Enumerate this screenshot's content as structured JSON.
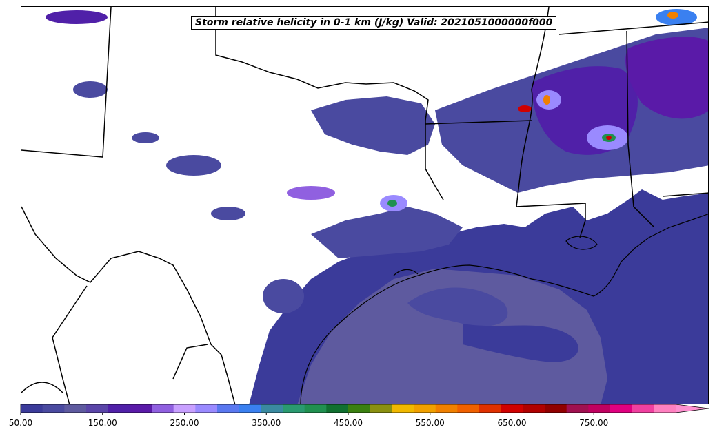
{
  "title": "Storm relative helicity in 0-1 km (J/kg) Valid: 2021051000000f000",
  "colorbar": {
    "min": 50,
    "max": 850,
    "step": 25,
    "extend": "max",
    "ticks": [
      "50.00",
      "150.00",
      "250.00",
      "350.00",
      "450.00",
      "550.00",
      "650.00",
      "750.00"
    ],
    "tick_values": [
      50,
      150,
      250,
      350,
      450,
      550,
      650,
      750
    ],
    "colors": [
      "#3b3b9a",
      "#4a4aa0",
      "#5e5a9f",
      "#5a45a8",
      "#5020a8",
      "#5a1aa8",
      "#9060e0",
      "#c8a0ff",
      "#9a8aff",
      "#5a78f0",
      "#3a80f0",
      "#3a8aa0",
      "#2a9a70",
      "#209050",
      "#107030",
      "#3a8010",
      "#8a9010",
      "#f0b800",
      "#f0a000",
      "#f08000",
      "#f06000",
      "#e03000",
      "#d00000",
      "#b00000",
      "#900000",
      "#a01050",
      "#c00060",
      "#e00080",
      "#f040a0",
      "#ff80c0"
    ],
    "extend_color": "#ff90d0"
  },
  "map": {
    "projection": "Lambert conformal",
    "region": "Texas, Oklahoma, Louisiana, Arkansas, Mississippi, Gulf of Mexico",
    "ocean_fill_color": "#3b3b9a",
    "ocean_inner_color": "#5e5a9f"
  }
}
